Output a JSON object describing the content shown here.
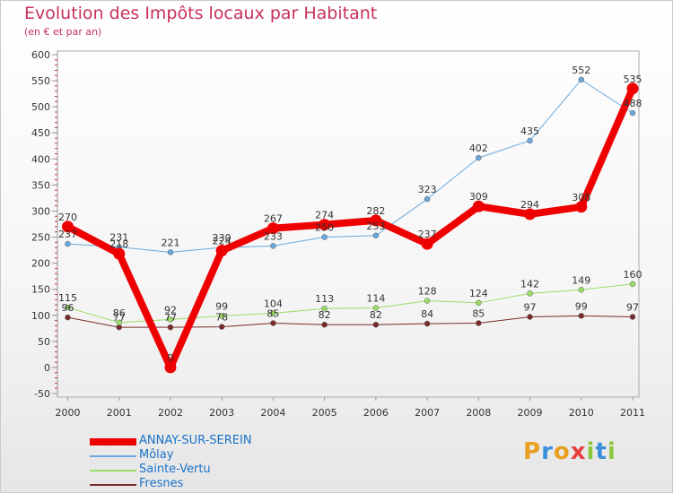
{
  "title": "Evolution des Impôts locaux par Habitant",
  "subtitle": "(en € et par an)",
  "logo_text": "Proxiti",
  "logo_colors": [
    "#e8a020",
    "#3a8fd8",
    "#e8a020",
    "#e84040",
    "#8cc83c",
    "#3a8fd8",
    "#8cc83c"
  ],
  "chart_data": {
    "type": "line",
    "x": [
      "2000",
      "2001",
      "2002",
      "2003",
      "2004",
      "2005",
      "2006",
      "2007",
      "2008",
      "2009",
      "2010",
      "2011"
    ],
    "yticks": [
      "-50",
      "0",
      "50",
      "100",
      "150",
      "200",
      "250",
      "300",
      "350",
      "400",
      "450",
      "500",
      "550",
      "600"
    ],
    "ylim": [
      -50,
      600
    ],
    "grid": false,
    "legend_position": "bottom-left",
    "series": [
      {
        "name": "ANNAY-SUR-SEREIN",
        "color": "#ee0000",
        "values": [
          270,
          218,
          0,
          224,
          267,
          274,
          282,
          237,
          309,
          294,
          308,
          535
        ],
        "labels": [
          "270",
          "218",
          "0",
          "224",
          "267",
          "274",
          "282",
          "237",
          "309",
          "294",
          "308",
          "535"
        ]
      },
      {
        "name": "Môlay",
        "color": "#6aa8dc",
        "values": [
          237,
          231,
          221,
          230,
          233,
          250,
          253,
          323,
          402,
          435,
          552,
          488
        ],
        "labels": [
          "237",
          "231",
          "221",
          "230",
          "233",
          "250",
          "253",
          "323",
          "402",
          "435",
          "552",
          "488"
        ]
      },
      {
        "name": "Sainte-Vertu",
        "color": "#99dd66",
        "values": [
          115,
          86,
          92,
          99,
          104,
          113,
          114,
          128,
          124,
          142,
          149,
          160
        ],
        "labels": [
          "115",
          "86",
          "92",
          "99",
          "104",
          "113",
          "114",
          "128",
          "124",
          "142",
          "149",
          "160"
        ]
      },
      {
        "name": "Fresnes",
        "color": "#7a2a2a",
        "values": [
          96,
          77,
          77,
          78,
          85,
          82,
          82,
          84,
          85,
          97,
          99,
          97
        ],
        "labels": [
          "96",
          "77",
          "77",
          "78",
          "85",
          "82",
          "82",
          "84",
          "85",
          "97",
          "99",
          "97"
        ]
      }
    ]
  }
}
